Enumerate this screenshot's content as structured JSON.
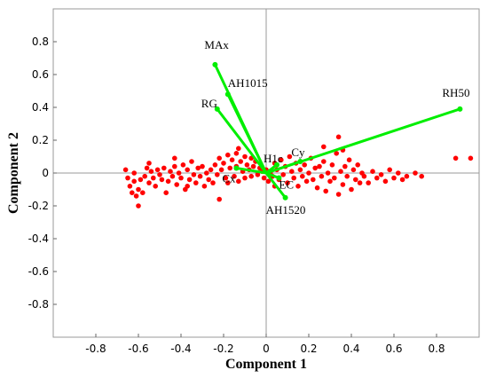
{
  "chart_data": {
    "type": "scatter",
    "title": "",
    "xlabel": "Component 1",
    "ylabel": "Component 2",
    "xlim": [
      -1.0,
      1.0
    ],
    "ylim": [
      -1.0,
      1.0
    ],
    "x_ticks": [
      -0.8,
      -0.6,
      -0.4,
      -0.2,
      0,
      0.2,
      0.4,
      0.6,
      0.8
    ],
    "y_ticks": [
      -0.8,
      -0.6,
      -0.4,
      -0.2,
      0,
      0.2,
      0.4,
      0.6,
      0.8
    ],
    "grid": false,
    "colors": {
      "points": "#ff0000",
      "vectors": "#00ee00",
      "axes": "#999999"
    },
    "vectors": [
      {
        "label": "MAx",
        "x": -0.24,
        "y": 0.66
      },
      {
        "label": "AH1015",
        "x": -0.18,
        "y": 0.48
      },
      {
        "label": "RG",
        "x": -0.23,
        "y": 0.39
      },
      {
        "label": "RH50",
        "x": 0.91,
        "y": 0.39
      },
      {
        "label": "Cy",
        "x": 0.16,
        "y": 0.07
      },
      {
        "label": "H1c",
        "x": 0.05,
        "y": 0.05
      },
      {
        "label": "Cx",
        "x": -0.14,
        "y": 0.03
      },
      {
        "label": "EC",
        "x": 0.06,
        "y": -0.03
      },
      {
        "label": "AH1520",
        "x": 0.09,
        "y": -0.15
      }
    ],
    "points": [
      [
        -0.66,
        0.02
      ],
      [
        -0.65,
        -0.03
      ],
      [
        -0.64,
        -0.08
      ],
      [
        -0.63,
        -0.12
      ],
      [
        -0.62,
        0.0
      ],
      [
        -0.62,
        -0.05
      ],
      [
        -0.61,
        -0.14
      ],
      [
        -0.6,
        -0.1
      ],
      [
        -0.6,
        -0.2
      ],
      [
        -0.59,
        -0.04
      ],
      [
        -0.58,
        -0.12
      ],
      [
        -0.57,
        -0.02
      ],
      [
        -0.56,
        0.03
      ],
      [
        -0.55,
        -0.06
      ],
      [
        -0.54,
        0.01
      ],
      [
        -0.53,
        -0.03
      ],
      [
        -0.52,
        -0.08
      ],
      [
        -0.51,
        0.02
      ],
      [
        -0.5,
        -0.01
      ],
      [
        -0.49,
        -0.04
      ],
      [
        -0.48,
        0.03
      ],
      [
        -0.47,
        -0.12
      ],
      [
        -0.46,
        -0.05
      ],
      [
        -0.45,
        0.01
      ],
      [
        -0.44,
        -0.02
      ],
      [
        -0.43,
        0.04
      ],
      [
        -0.42,
        -0.07
      ],
      [
        -0.41,
        0.0
      ],
      [
        -0.4,
        -0.03
      ],
      [
        -0.39,
        0.05
      ],
      [
        -0.38,
        -0.1
      ],
      [
        -0.37,
        0.02
      ],
      [
        -0.36,
        -0.04
      ],
      [
        -0.35,
        0.07
      ],
      [
        -0.34,
        -0.01
      ],
      [
        -0.33,
        -0.06
      ],
      [
        -0.32,
        0.03
      ],
      [
        -0.31,
        -0.02
      ],
      [
        -0.3,
        0.04
      ],
      [
        -0.29,
        -0.08
      ],
      [
        -0.28,
        0.0
      ],
      [
        -0.27,
        -0.04
      ],
      [
        -0.26,
        0.02
      ],
      [
        -0.25,
        -0.06
      ],
      [
        -0.24,
        0.05
      ],
      [
        -0.23,
        -0.01
      ],
      [
        -0.22,
        0.09
      ],
      [
        -0.22,
        -0.16
      ],
      [
        -0.21,
        0.02
      ],
      [
        -0.2,
        0.06
      ],
      [
        -0.19,
        -0.03
      ],
      [
        -0.18,
        0.11
      ],
      [
        -0.18,
        -0.06
      ],
      [
        -0.17,
        0.03
      ],
      [
        -0.16,
        0.08
      ],
      [
        -0.15,
        -0.02
      ],
      [
        -0.14,
        0.12
      ],
      [
        -0.14,
        0.04
      ],
      [
        -0.13,
        -0.05
      ],
      [
        -0.12,
        0.07
      ],
      [
        -0.11,
        0.01
      ],
      [
        -0.1,
        0.1
      ],
      [
        -0.1,
        -0.03
      ],
      [
        -0.09,
        0.05
      ],
      [
        -0.08,
        0.02
      ],
      [
        -0.07,
        0.09
      ],
      [
        -0.07,
        -0.02
      ],
      [
        -0.06,
        0.04
      ],
      [
        -0.05,
        0.07
      ],
      [
        -0.04,
        -0.01
      ],
      [
        -0.03,
        0.03
      ],
      [
        -0.02,
        0.01
      ],
      [
        -0.01,
        -0.03
      ],
      [
        0.0,
        0.02
      ],
      [
        0.01,
        -0.05
      ],
      [
        0.02,
        0.0
      ],
      [
        0.03,
        -0.02
      ],
      [
        0.04,
        0.06
      ],
      [
        0.04,
        -0.08
      ],
      [
        0.05,
        0.02
      ],
      [
        0.06,
        -0.04
      ],
      [
        0.07,
        0.08
      ],
      [
        0.08,
        -0.01
      ],
      [
        0.09,
        0.04
      ],
      [
        0.1,
        -0.06
      ],
      [
        0.11,
        0.1
      ],
      [
        0.12,
        0.01
      ],
      [
        0.13,
        -0.03
      ],
      [
        0.14,
        0.06
      ],
      [
        0.15,
        -0.08
      ],
      [
        0.16,
        0.02
      ],
      [
        0.17,
        -0.02
      ],
      [
        0.18,
        0.05
      ],
      [
        0.19,
        -0.05
      ],
      [
        0.2,
        0.0
      ],
      [
        0.21,
        0.09
      ],
      [
        0.22,
        -0.04
      ],
      [
        0.23,
        0.03
      ],
      [
        0.24,
        -0.09
      ],
      [
        0.25,
        0.04
      ],
      [
        0.26,
        -0.02
      ],
      [
        0.27,
        0.07
      ],
      [
        0.28,
        -0.11
      ],
      [
        0.29,
        0.0
      ],
      [
        0.3,
        -0.05
      ],
      [
        0.31,
        0.05
      ],
      [
        0.32,
        -0.03
      ],
      [
        0.33,
        0.12
      ],
      [
        0.34,
        0.22
      ],
      [
        0.34,
        -0.13
      ],
      [
        0.35,
        0.01
      ],
      [
        0.36,
        -0.07
      ],
      [
        0.37,
        0.04
      ],
      [
        0.38,
        -0.02
      ],
      [
        0.39,
        0.08
      ],
      [
        0.4,
        -0.1
      ],
      [
        0.41,
        0.02
      ],
      [
        0.42,
        -0.04
      ],
      [
        0.43,
        0.05
      ],
      [
        0.44,
        -0.06
      ],
      [
        0.45,
        0.0
      ],
      [
        0.46,
        -0.02
      ],
      [
        0.48,
        -0.06
      ],
      [
        0.5,
        0.01
      ],
      [
        0.52,
        -0.03
      ],
      [
        0.54,
        -0.01
      ],
      [
        0.56,
        -0.05
      ],
      [
        0.58,
        0.02
      ],
      [
        0.6,
        -0.03
      ],
      [
        0.62,
        0.0
      ],
      [
        0.64,
        -0.04
      ],
      [
        0.66,
        -0.02
      ],
      [
        0.7,
        0.0
      ],
      [
        0.73,
        -0.02
      ],
      [
        0.89,
        0.09
      ],
      [
        0.96,
        0.09
      ],
      [
        -0.37,
        -0.08
      ],
      [
        -0.13,
        0.15
      ],
      [
        0.27,
        0.16
      ],
      [
        0.36,
        0.14
      ],
      [
        -0.43,
        0.09
      ],
      [
        -0.55,
        0.06
      ]
    ]
  }
}
